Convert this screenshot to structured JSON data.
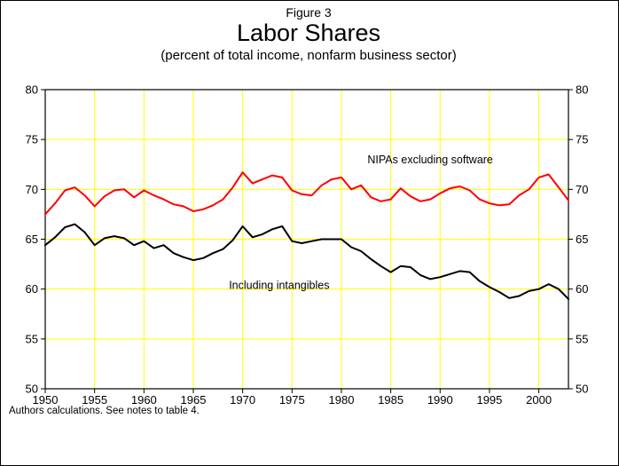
{
  "figure": {
    "label": "Figure 3",
    "title": "Labor Shares",
    "subtitle": "(percent of total income, nonfarm business sector)",
    "footnote": "Authors calculations.  See notes to table 4."
  },
  "chart_data": {
    "type": "line",
    "title": "Labor Shares",
    "subtitle": "(percent of total income, nonfarm business sector)",
    "xlabel": "",
    "ylabel": "",
    "xlim": [
      1950,
      2003
    ],
    "ylim": [
      50,
      80
    ],
    "x_ticks": [
      1950,
      1955,
      1960,
      1965,
      1970,
      1975,
      1980,
      1985,
      1990,
      1995,
      2000
    ],
    "y_ticks": [
      50,
      55,
      60,
      65,
      70,
      75,
      80
    ],
    "grid": true,
    "grid_color": "#ffff00",
    "background_color": "#ffffff",
    "frame_color": "#000000",
    "legend_position": "inline-annotations",
    "x": [
      1950,
      1951,
      1952,
      1953,
      1954,
      1955,
      1956,
      1957,
      1958,
      1959,
      1960,
      1961,
      1962,
      1963,
      1964,
      1965,
      1966,
      1967,
      1968,
      1969,
      1970,
      1971,
      1972,
      1973,
      1974,
      1975,
      1976,
      1977,
      1978,
      1979,
      1980,
      1981,
      1982,
      1983,
      1984,
      1985,
      1986,
      1987,
      1988,
      1989,
      1990,
      1991,
      1992,
      1993,
      1994,
      1995,
      1996,
      1997,
      1998,
      1999,
      2000,
      2001,
      2002,
      2003
    ],
    "series": [
      {
        "name": "NIPAs excluding software",
        "color": "#ff0000",
        "values": [
          67.5,
          68.6,
          69.9,
          70.2,
          69.4,
          68.3,
          69.3,
          69.9,
          70.0,
          69.2,
          69.9,
          69.4,
          69.0,
          68.5,
          68.3,
          67.8,
          68.0,
          68.4,
          69.0,
          70.2,
          71.7,
          70.6,
          71.0,
          71.4,
          71.2,
          69.9,
          69.5,
          69.4,
          70.4,
          71.0,
          71.2,
          70.0,
          70.4,
          69.2,
          68.8,
          69.0,
          70.1,
          69.3,
          68.8,
          69.0,
          69.6,
          70.1,
          70.3,
          69.9,
          69.0,
          68.6,
          68.4,
          68.5,
          69.4,
          70.0,
          71.2,
          71.5,
          70.2,
          68.9
        ]
      },
      {
        "name": "Including intangibles",
        "color": "#000000",
        "values": [
          64.4,
          65.2,
          66.2,
          66.5,
          65.7,
          64.4,
          65.1,
          65.3,
          65.1,
          64.4,
          64.8,
          64.1,
          64.4,
          63.6,
          63.2,
          62.9,
          63.1,
          63.6,
          64.0,
          64.9,
          66.3,
          65.2,
          65.5,
          66.0,
          66.3,
          64.8,
          64.6,
          64.8,
          65.0,
          65.0,
          65.0,
          64.2,
          63.8,
          63.0,
          62.3,
          61.7,
          62.3,
          62.2,
          61.4,
          61.0,
          61.2,
          61.5,
          61.8,
          61.7,
          60.8,
          60.2,
          59.7,
          59.1,
          59.3,
          59.8,
          60.0,
          60.5,
          60.0,
          59.0
        ]
      }
    ],
    "annotations": [
      {
        "text": "NIPAs excluding software",
        "x": 1989,
        "y": 72.6
      },
      {
        "text": "Including intangibles",
        "x": 1973.7,
        "y": 60.0
      }
    ]
  }
}
